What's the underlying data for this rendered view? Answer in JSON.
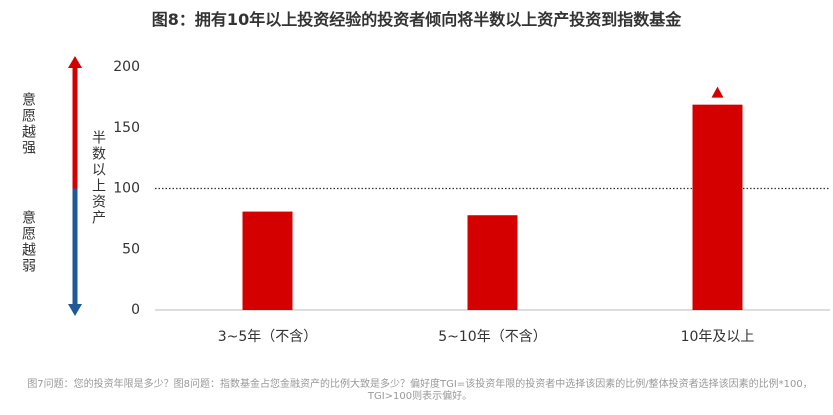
{
  "chart_data": {
    "type": "bar",
    "title": "图8：拥有10年以上投资经验的投资者倾向将半数以上资产投资到指数基金",
    "categories": [
      "3~5年（不含）",
      "5~10年（不含）",
      "10年及以上"
    ],
    "values": [
      81,
      78,
      169
    ],
    "color": "#d40000",
    "ylim": [
      0,
      200
    ],
    "yticks": [
      0,
      50,
      100,
      150,
      200
    ],
    "reference_line": 100,
    "y_label": "半数以上资产",
    "annotations": [
      "意愿越强",
      "意愿越弱"
    ],
    "footnote": "图7问题：您的投资年限是多少？图8问题：指数基金占您金融资产的比例大致是多少？偏好度TGI=该投资年限的投资者中选择该因素的比例/整体投资者选择该因素的比例*100，TGI>100则表示偏好。"
  }
}
